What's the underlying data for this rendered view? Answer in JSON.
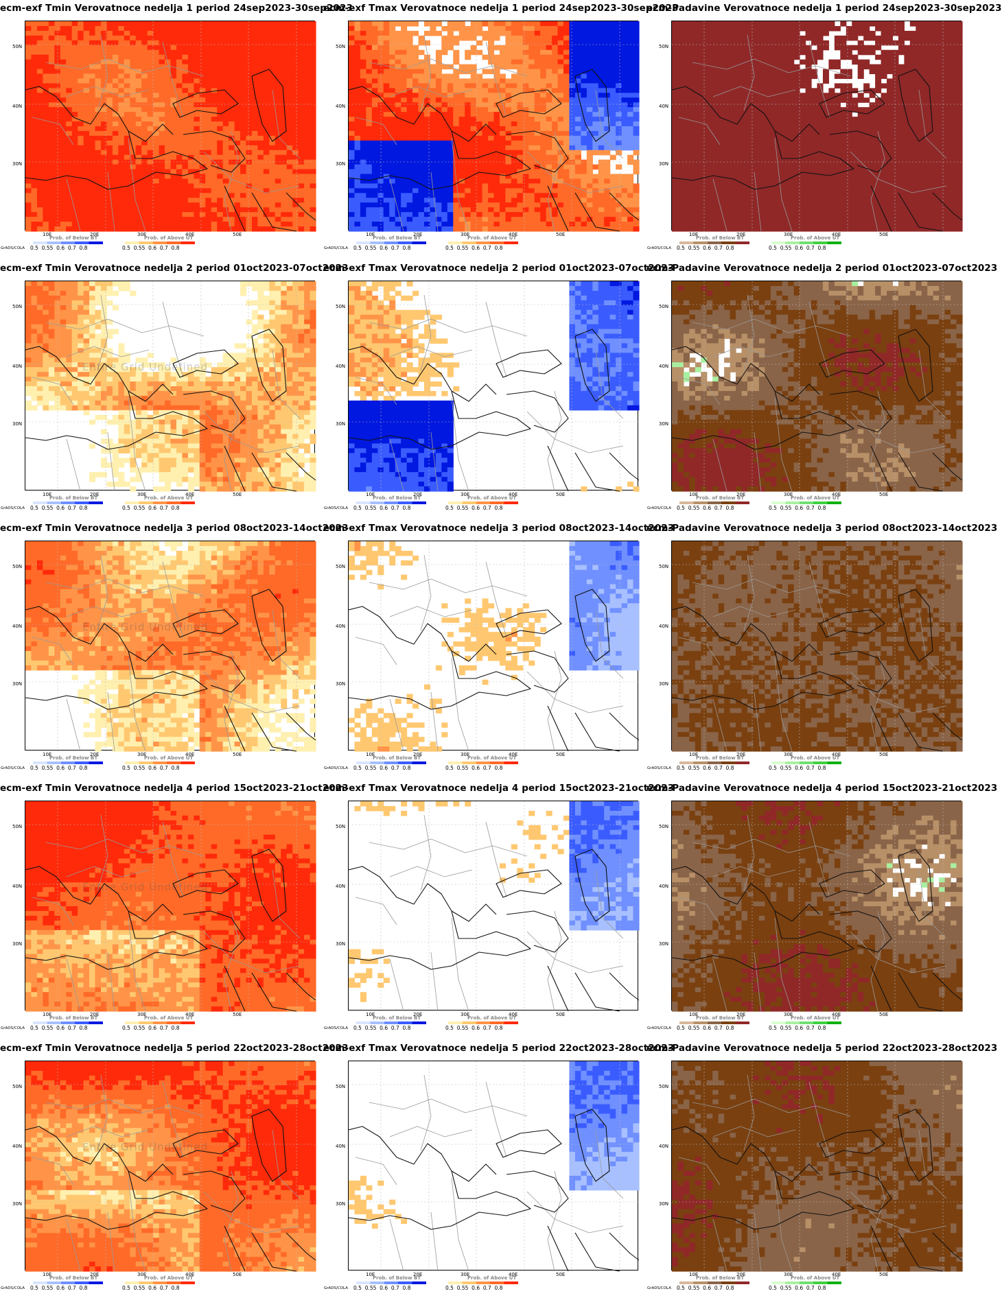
{
  "brand": "GrADS/COLA",
  "undefined_note": "Entire Grid Undefined",
  "axes": {
    "lat_labels": [
      "50N",
      "40N",
      "30N"
    ],
    "lon_labels": [
      "10E",
      "20E",
      "30E",
      "40E",
      "50E"
    ]
  },
  "legend": {
    "below_title": "Prob. of Below BT",
    "above_title": "Prob. of Above UT",
    "ticks_left": "0.5  0.55  0.6  0.7  0.8",
    "ticks_right": "0.5  0.55  0.6  0.7  0.8"
  },
  "colors": {
    "temp_above": [
      "#fff0b0",
      "#ffc870",
      "#ff9448",
      "#ff6a28",
      "#ff2a0a"
    ],
    "temp_below": [
      "#d8e4ff",
      "#a8c0ff",
      "#7090ff",
      "#3a5cff",
      "#0018e0"
    ],
    "precip_below": [
      "#d8b89a",
      "#b89068",
      "#8a6448",
      "#7a4010",
      "#902828"
    ],
    "precip_above": [
      "#d8ffd0",
      "#a8f0a0",
      "#70e070",
      "#40d040",
      "#10b010"
    ]
  },
  "panels": [
    {
      "title": "ecm-exf Tmin Verovatnoce nedelja 1 period 24sep2023-30sep2023",
      "variable": "tmin",
      "week": 1,
      "undefined": false
    },
    {
      "title": "ecm-exf Tmax Verovatnoce nedelja 1 period 24sep2023-30sep2023",
      "variable": "tmax",
      "week": 1,
      "undefined": false
    },
    {
      "title": "ecm-Padavine Verovatnoce nedelja 1 period 24sep2023-30sep2023",
      "variable": "precip",
      "week": 1,
      "undefined": false
    },
    {
      "title": "ecm-exf Tmin Verovatnoce nedelja 2 period 01oct2023-07oct2023",
      "variable": "tmin",
      "week": 2,
      "undefined": true
    },
    {
      "title": "ecm-exf Tmax Verovatnoce nedelja 2 period 01oct2023-07oct2023",
      "variable": "tmax",
      "week": 2,
      "undefined": false
    },
    {
      "title": "ecm-Padavine Verovatnoce nedelja 2 period 01oct2023-07oct2023",
      "variable": "precip",
      "week": 2,
      "undefined": false
    },
    {
      "title": "ecm-exf Tmin Verovatnoce nedelja 3 period 08oct2023-14oct2023",
      "variable": "tmin",
      "week": 3,
      "undefined": true
    },
    {
      "title": "ecm-exf Tmax Verovatnoce nedelja 3 period 08oct2023-14oct2023",
      "variable": "tmax",
      "week": 3,
      "undefined": false
    },
    {
      "title": "ecm-Padavine Verovatnoce nedelja 3 period 08oct2023-14oct2023",
      "variable": "precip",
      "week": 3,
      "undefined": false
    },
    {
      "title": "ecm-exf Tmin Verovatnoce nedelja 4 period 15oct2023-21oct2023",
      "variable": "tmin",
      "week": 4,
      "undefined": true
    },
    {
      "title": "ecm-exf Tmax Verovatnoce nedelja 4 period 15oct2023-21oct2023",
      "variable": "tmax",
      "week": 4,
      "undefined": false
    },
    {
      "title": "ecm-Padavine Verovatnoce nedelja 4 period 15oct2023-21oct2023",
      "variable": "precip",
      "week": 4,
      "undefined": false
    },
    {
      "title": "ecm-exf Tmin Verovatnoce nedelja 5 period 22oct2023-28oct2023",
      "variable": "tmin",
      "week": 5,
      "undefined": true
    },
    {
      "title": "ecm-exf Tmax Verovatnoce nedelja 5 period 22oct2023-28oct2023",
      "variable": "tmax",
      "week": 5,
      "undefined": false
    },
    {
      "title": "ecm-Padavine Verovatnoce nedelja 5 period 22oct2023-28oct2023",
      "variable": "precip",
      "week": 5,
      "undefined": false
    }
  ]
}
